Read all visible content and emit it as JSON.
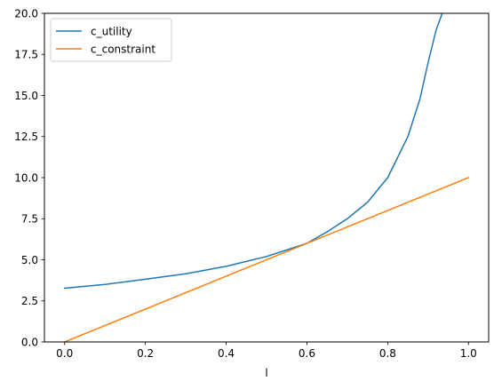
{
  "chart_data": {
    "type": "line",
    "title": "",
    "xlabel": "l",
    "ylabel": "",
    "xlim": [
      -0.05,
      1.05
    ],
    "ylim": [
      0,
      20
    ],
    "xticks": [
      "0.0",
      "0.2",
      "0.4",
      "0.6",
      "0.8",
      "1.0"
    ],
    "yticks": [
      "0.0",
      "2.5",
      "5.0",
      "7.5",
      "10.0",
      "12.5",
      "15.0",
      "17.5",
      "20.0"
    ],
    "grid": false,
    "legend_position": "top-left",
    "series": [
      {
        "name": "c_utility",
        "color": "#1f77b4",
        "x": [
          0.0,
          0.1,
          0.2,
          0.3,
          0.4,
          0.5,
          0.6,
          0.65,
          0.7,
          0.75,
          0.8,
          0.85,
          0.88,
          0.9,
          0.92,
          0.935
        ],
        "y": [
          3.27,
          3.5,
          3.82,
          4.15,
          4.6,
          5.2,
          6.0,
          6.7,
          7.5,
          8.5,
          10.0,
          12.5,
          14.8,
          17.0,
          19.0,
          20.0
        ]
      },
      {
        "name": "c_constraint",
        "color": "#ff7f0e",
        "x": [
          0.0,
          1.0
        ],
        "y": [
          0.0,
          10.0
        ]
      }
    ]
  }
}
